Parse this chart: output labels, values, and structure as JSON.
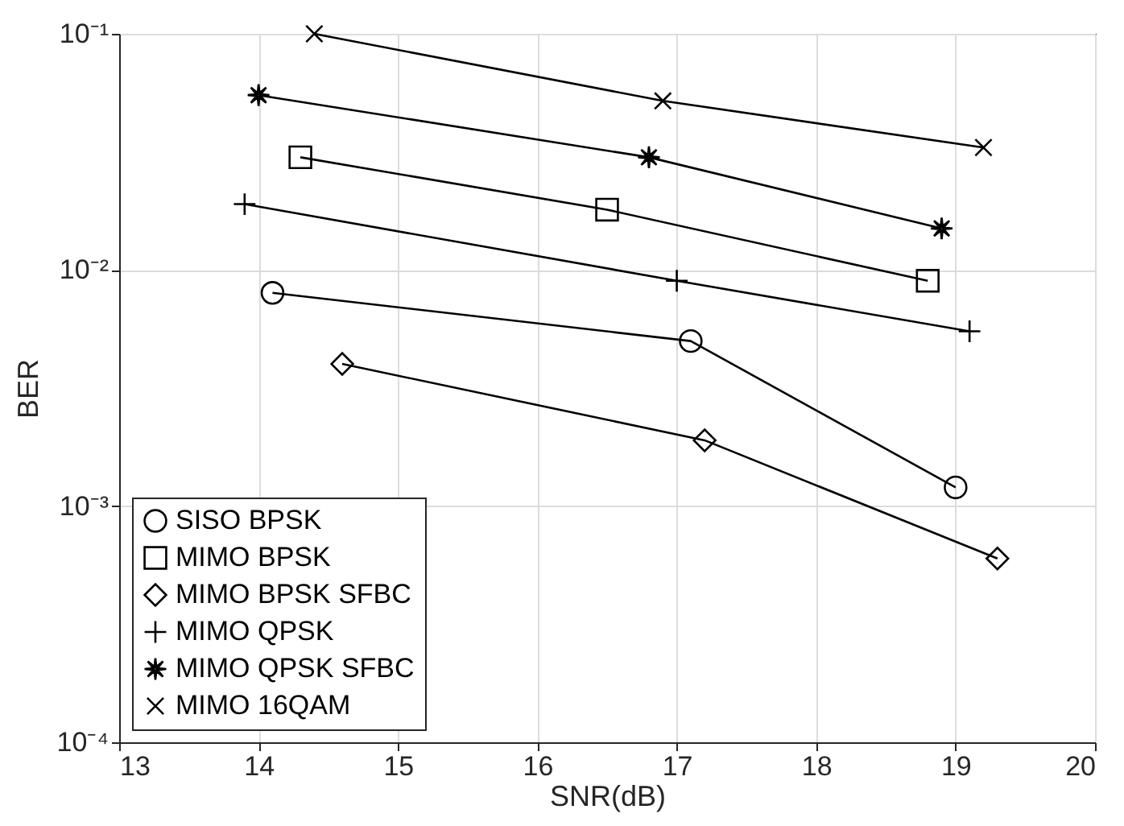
{
  "chart_data": {
    "type": "line",
    "xlabel": "SNR(dB)",
    "ylabel": "BER",
    "log": "y",
    "grid": true,
    "legend": "bottom left",
    "line_style": "solid",
    "xlim": [
      13,
      20
    ],
    "xticks": [
      13,
      14,
      15,
      16,
      17,
      18,
      19,
      20
    ],
    "ylim": [
      0.0001,
      0.1
    ],
    "yticks": [
      {
        "value": 0.0001,
        "label": "10⁻⁴"
      },
      {
        "value": 0.001,
        "label": "10⁻³"
      },
      {
        "value": 0.01,
        "label": "10⁻²"
      },
      {
        "value": 0.1,
        "label": "10⁻¹"
      }
    ],
    "series": [
      {
        "name": "SISO BPSK",
        "color": "#000000",
        "marker": "circle",
        "x": [
          14.1,
          17.1,
          19.0
        ],
        "values": [
          0.008,
          0.005,
          0.0012
        ]
      },
      {
        "name": "MIMO BPSK",
        "color": "#000000",
        "marker": "square",
        "x": [
          14.3,
          16.5,
          18.8
        ],
        "values": [
          0.03,
          0.018,
          0.009
        ]
      },
      {
        "name": "MIMO BPSK SFBC",
        "color": "#000000",
        "marker": "diamond",
        "x": [
          14.6,
          17.2,
          19.3
        ],
        "values": [
          0.004,
          0.0019,
          0.0006
        ]
      },
      {
        "name": "MIMO QPSK",
        "color": "#000000",
        "marker": "cross",
        "x": [
          13.9,
          17.0,
          19.1
        ],
        "values": [
          0.019,
          0.009,
          0.0055
        ]
      },
      {
        "name": "MIMO QPSK SFBC",
        "color": "#000000",
        "marker": "star",
        "x": [
          14.0,
          16.8,
          18.9
        ],
        "values": [
          0.055,
          0.03,
          0.015
        ]
      },
      {
        "name": "MIMO 16QAM",
        "color": "#000000",
        "marker": "x",
        "x": [
          14.4,
          16.9,
          19.2
        ],
        "values": [
          0.1,
          0.052,
          0.033
        ]
      }
    ]
  }
}
